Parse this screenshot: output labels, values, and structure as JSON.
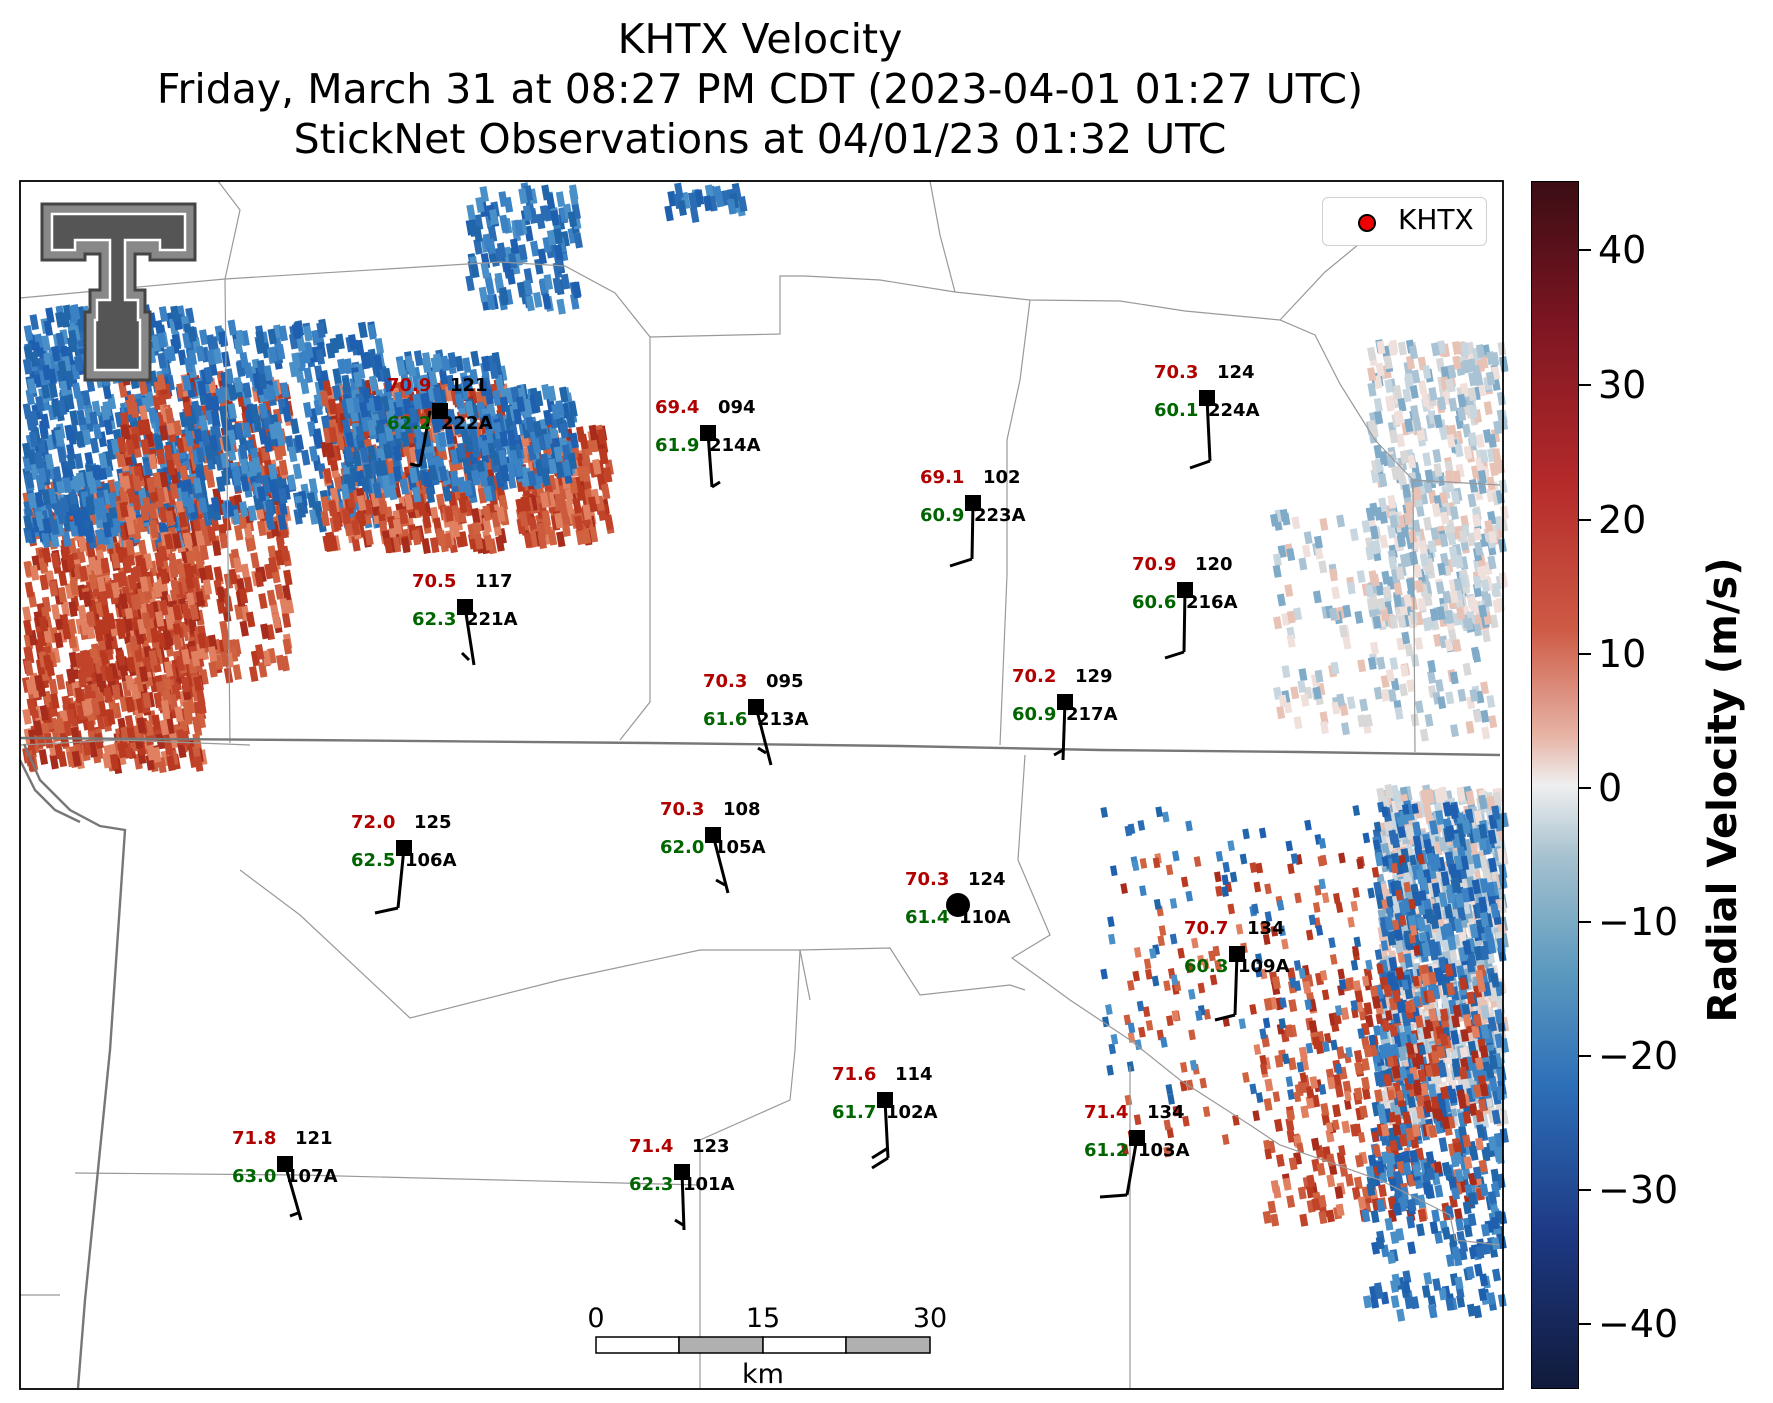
{
  "title": {
    "line1": "KHTX Velocity",
    "line2": "Friday, March 31 at 08:27 PM CDT (2023-04-01 01:27 UTC)",
    "line3": "StickNet Observations at 04/01/23 01:32 UTC"
  },
  "legend": {
    "label": "KHTX",
    "marker_color": "#e00000"
  },
  "colorbar": {
    "label": "Radial Velocity (m/s)",
    "ticks": [
      "40",
      "30",
      "20",
      "10",
      "0",
      "−10",
      "−20",
      "−30",
      "−40"
    ],
    "range": [
      -45,
      45
    ]
  },
  "scalebar": {
    "labels": [
      "0",
      "15",
      "30"
    ],
    "unit": "km"
  },
  "logo": "texas-tech-double-t-logo",
  "radar_site": {
    "name": "KHTX",
    "temp": "70.3",
    "pressure": "124",
    "dew": "61.4",
    "id": "110A"
  },
  "stations": [
    {
      "id": "222A",
      "temp": "70.9",
      "pressure": "121",
      "dew": "62.2"
    },
    {
      "id": "214A",
      "temp": "69.4",
      "pressure": "094",
      "dew": "61.9"
    },
    {
      "id": "223A",
      "temp": "69.1",
      "pressure": "102",
      "dew": "60.9"
    },
    {
      "id": "224A",
      "temp": "70.3",
      "pressure": "124",
      "dew": "60.1"
    },
    {
      "id": "221A",
      "temp": "70.5",
      "pressure": "117",
      "dew": "62.3"
    },
    {
      "id": "216A",
      "temp": "70.9",
      "pressure": "120",
      "dew": "60.6"
    },
    {
      "id": "213A",
      "temp": "70.3",
      "pressure": "095",
      "dew": "61.6"
    },
    {
      "id": "217A",
      "temp": "70.2",
      "pressure": "129",
      "dew": "60.9"
    },
    {
      "id": "106A",
      "temp": "72.0",
      "pressure": "125",
      "dew": "62.5"
    },
    {
      "id": "105A",
      "temp": "70.3",
      "pressure": "108",
      "dew": "62.0"
    },
    {
      "id": "109A",
      "temp": "70.7",
      "pressure": "134",
      "dew": "60.3"
    },
    {
      "id": "102A",
      "temp": "71.6",
      "pressure": "114",
      "dew": "61.7"
    },
    {
      "id": "103A",
      "temp": "71.4",
      "pressure": "134",
      "dew": "61.2"
    },
    {
      "id": "107A",
      "temp": "71.8",
      "pressure": "121",
      "dew": "63.0"
    },
    {
      "id": "101A",
      "temp": "71.4",
      "pressure": "123",
      "dew": "62.3"
    }
  ],
  "colors": {
    "temperature": "#b00000",
    "dewpoint": "#006400",
    "pressure": "#000000"
  }
}
